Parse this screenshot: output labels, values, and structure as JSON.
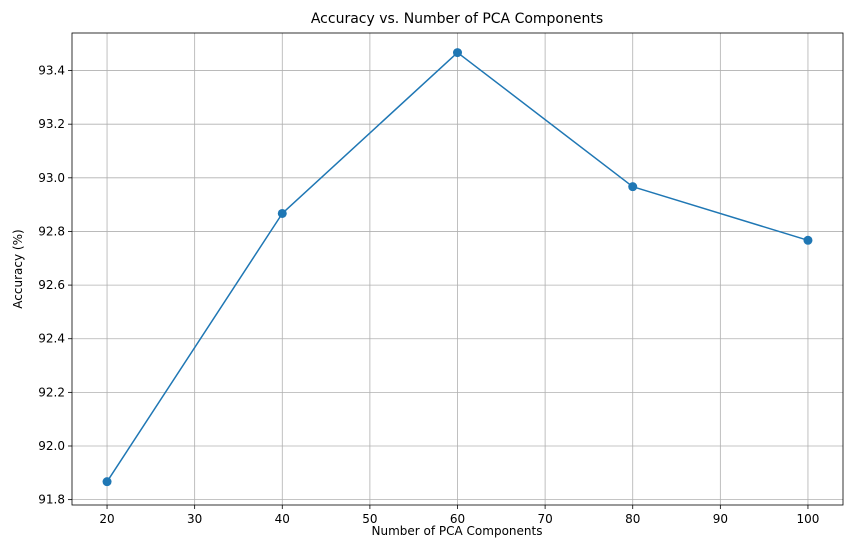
{
  "chart_data": {
    "type": "line",
    "title": "Accuracy vs. Number of PCA Components",
    "xlabel": "Number of PCA Components",
    "ylabel": "Accuracy (%)",
    "x": [
      20,
      40,
      60,
      80,
      100
    ],
    "series": [
      {
        "values": [
          91.867,
          92.867,
          93.467,
          92.967,
          92.767
        ],
        "color": "#1f77b4",
        "marker": "circle"
      }
    ],
    "xlim": [
      16,
      104
    ],
    "ylim": [
      91.78,
      93.54
    ],
    "xticks": [
      20,
      30,
      40,
      50,
      60,
      70,
      80,
      90,
      100
    ],
    "xtick_labels": [
      "20",
      "30",
      "40",
      "50",
      "60",
      "70",
      "80",
      "90",
      "100"
    ],
    "yticks": [
      91.8,
      92.0,
      92.2,
      92.4,
      92.6,
      92.8,
      93.0,
      93.2,
      93.4
    ],
    "ytick_labels": [
      "91.8",
      "92.0",
      "92.2",
      "92.4",
      "92.6",
      "92.8",
      "93.0",
      "93.2",
      "93.4"
    ],
    "grid": true,
    "grid_color": "#b0b0b0",
    "axis_color": "#000000"
  }
}
